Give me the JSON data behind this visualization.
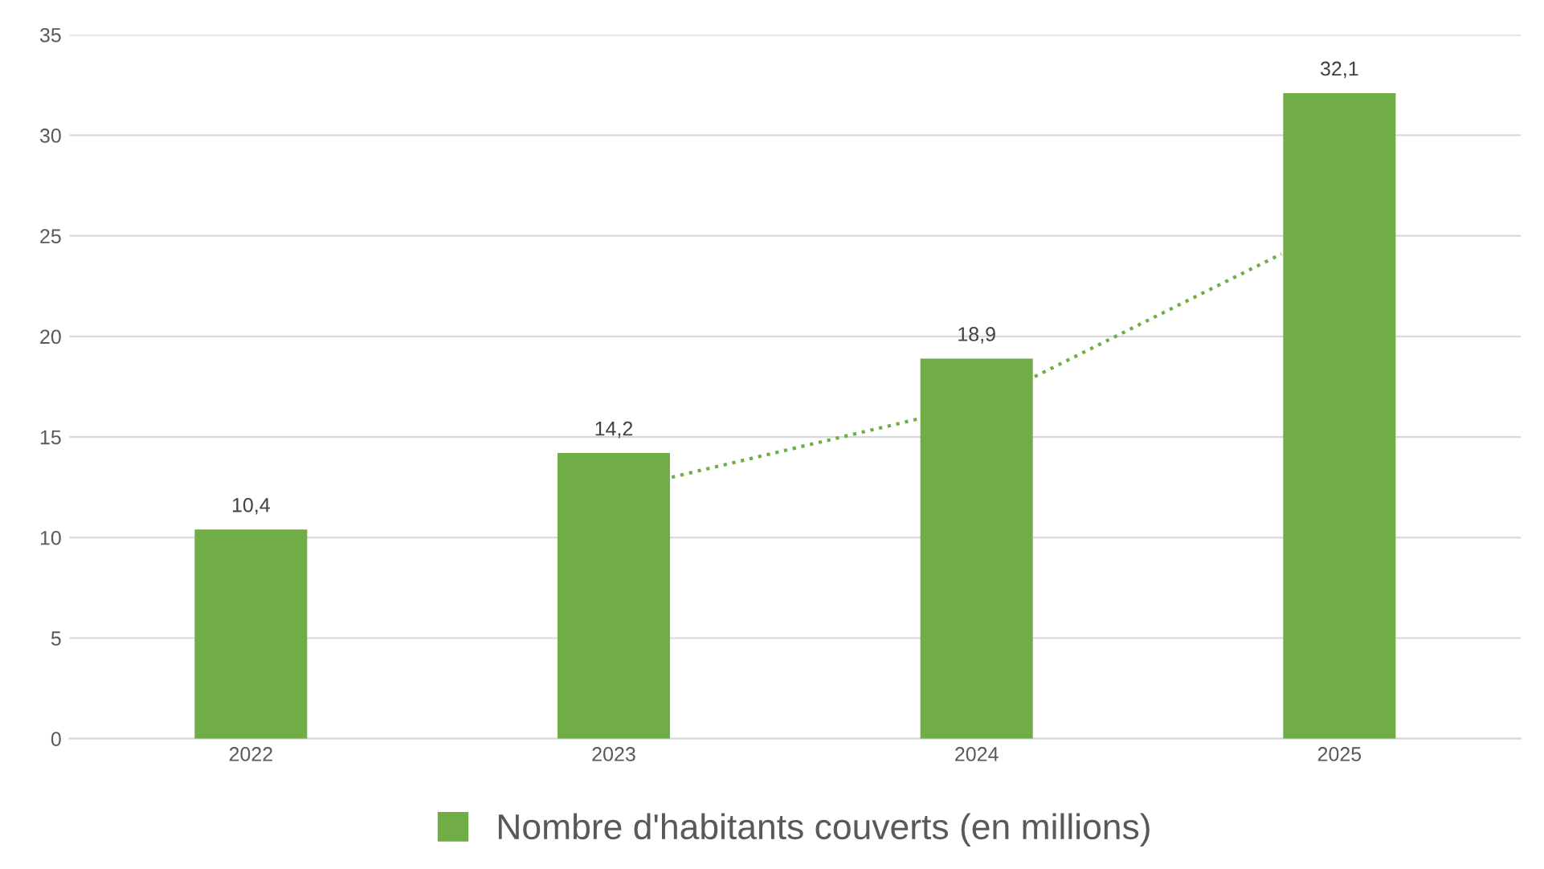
{
  "chart_data": {
    "type": "bar",
    "x": [
      2022,
      2023,
      2024,
      2025
    ],
    "series": [
      {
        "name": "Nombre d'habitants couverts (en millions)",
        "color": "#70ad47",
        "values": [
          10.4,
          14.2,
          18.9,
          32.1
        ],
        "value_labels": [
          "10,4",
          "14,2",
          "18,9",
          "32,1"
        ]
      },
      {
        "type": "line",
        "color": "#70ad47",
        "line_style": "dotted",
        "x": [
          2023.16,
          2023.84,
          2024.0,
          2024.16,
          2024.84
        ],
        "values": [
          13.0,
          15.9,
          null,
          18.0,
          24.1
        ]
      }
    ],
    "xlim": [
      2021.5,
      2025.5
    ],
    "xticks": [
      2022,
      2023,
      2024,
      2025
    ],
    "ylim": [
      0,
      35
    ],
    "yticks": [
      0,
      5,
      10,
      15,
      20,
      25,
      30,
      35
    ],
    "grid": "y",
    "legend": "bottom"
  }
}
